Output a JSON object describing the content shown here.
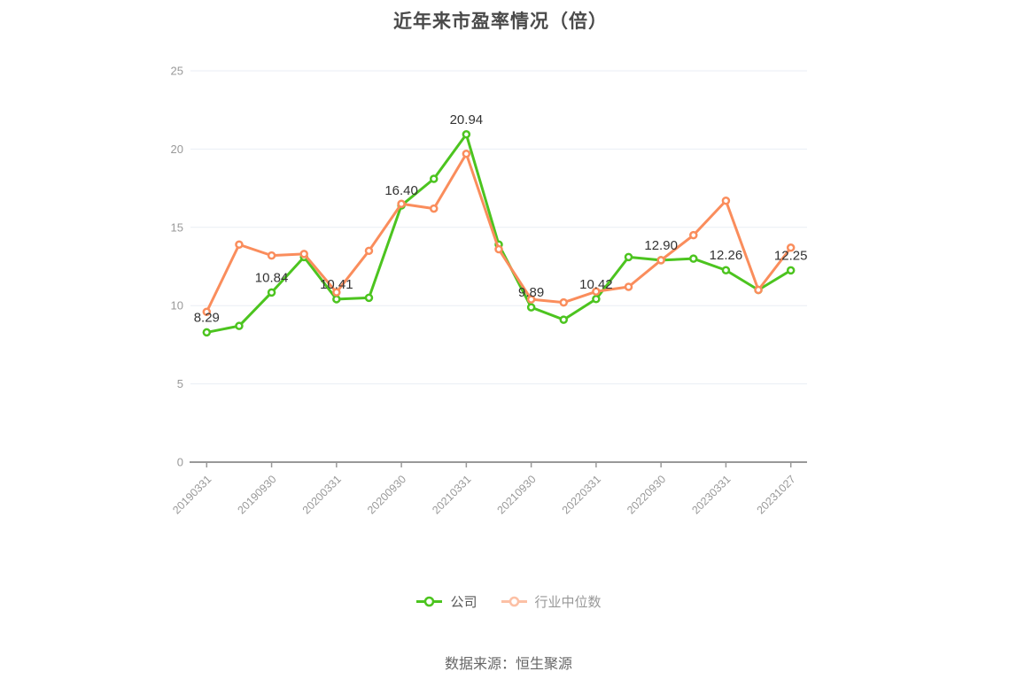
{
  "title": {
    "text": "近年来市盈率情况（倍）"
  },
  "footer": {
    "text": "数据来源：恒生聚源"
  },
  "legend": {
    "items": [
      {
        "id": "company",
        "label": "公司",
        "color": "#4cc41f",
        "label_color": "#595959",
        "marker_opacity": 1
      },
      {
        "id": "industry-median",
        "label": "行业中位数",
        "color": "#fa8d5c",
        "label_color": "#999999",
        "marker_opacity": 0.55
      }
    ]
  },
  "chart_data": {
    "type": "line",
    "title": "近年来市盈率情况（倍）",
    "ylabel": "",
    "xlabel": "",
    "ylim": [
      0,
      25
    ],
    "y_tick_values": [
      0,
      5,
      10,
      15,
      20,
      25
    ],
    "y_tick_labels": [
      "0",
      "5",
      "10",
      "15",
      "20",
      "25"
    ],
    "grid": true,
    "legend_position": "bottom",
    "n_points": 19,
    "x_labels": [
      "20190331",
      "20190930",
      "20200331",
      "20200930",
      "20210331",
      "20210930",
      "20220331",
      "20220930",
      "20230331",
      "20231027"
    ],
    "x_label_indices": [
      0,
      2,
      4,
      6,
      8,
      10,
      12,
      14,
      16,
      18
    ],
    "series": [
      {
        "id": "company",
        "name": "公司",
        "color": "#4cc41f",
        "values": [
          8.29,
          8.7,
          10.84,
          13.1,
          10.41,
          10.5,
          16.4,
          18.1,
          20.94,
          13.9,
          9.89,
          9.1,
          10.42,
          13.1,
          12.9,
          13.0,
          12.26,
          11.0,
          12.25
        ]
      },
      {
        "id": "industry-median",
        "name": "行业中位数",
        "color": "#fa8d5c",
        "values": [
          9.6,
          13.9,
          13.2,
          13.3,
          10.85,
          13.5,
          16.5,
          16.2,
          19.7,
          13.6,
          10.4,
          10.2,
          10.9,
          11.2,
          12.9,
          14.5,
          16.7,
          11.0,
          13.7
        ]
      }
    ],
    "data_labels": {
      "series": "公司",
      "indices": [
        0,
        2,
        4,
        6,
        8,
        10,
        12,
        14,
        16,
        18
      ],
      "texts": [
        "8.29",
        "10.84",
        "10.41",
        "16.40",
        "20.94",
        "9.89",
        "10.42",
        "12.90",
        "12.26",
        "12.25"
      ]
    },
    "colors": {
      "grid": "#e9eef4",
      "axis_line": "#999999",
      "tick_label": "#999999",
      "data_label": "#333333"
    }
  }
}
